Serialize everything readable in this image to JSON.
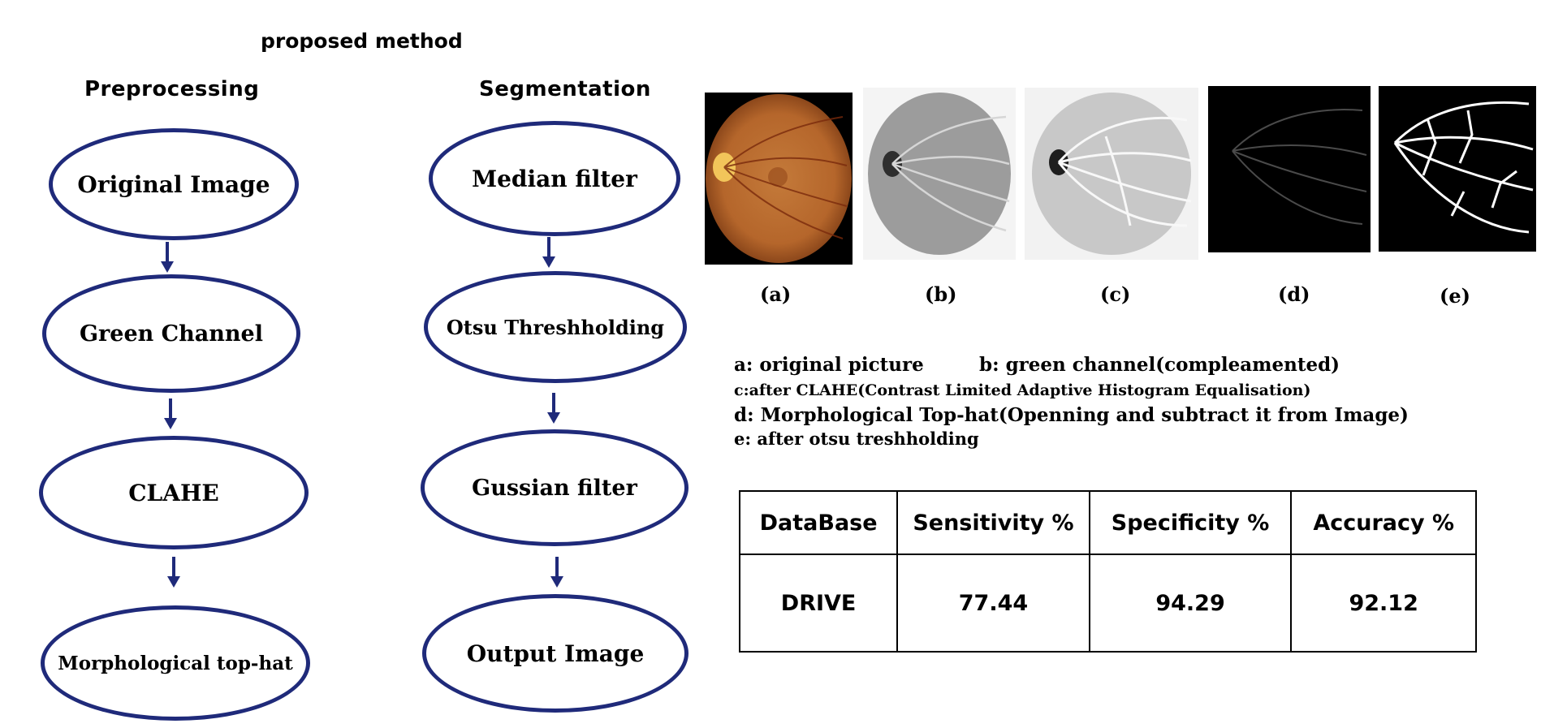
{
  "title": "proposed method",
  "columns": {
    "preprocessing": {
      "heading": "Preprocessing",
      "steps": [
        "Original Image",
        "Green Channel",
        "CLAHE",
        "Morphological top-hat"
      ]
    },
    "segmentation": {
      "heading": "Segmentation",
      "steps": [
        "Median filter",
        "Otsu Threshholding",
        "Gussian filter",
        "Output Image"
      ]
    }
  },
  "figure_captions": [
    "(a)",
    "(b)",
    "(c)",
    "(d)",
    "(e)"
  ],
  "legend": {
    "a": "a: original picture",
    "b": "b: green channel(compleamented)",
    "c": "c:after CLAHE(Contrast Limited Adaptive Histogram Equalisation)",
    "d": "d: Morphological Top-hat(Openning and subtract it from Image)",
    "e": "e: after otsu treshholding"
  },
  "results_table": {
    "headers": [
      "DataBase",
      "Sensitivity %",
      "Specificity %",
      "Accuracy %"
    ],
    "rows": [
      [
        "DRIVE",
        "77.44",
        "94.29",
        "92.12"
      ]
    ]
  },
  "colors": {
    "node_border": "#1f2a7a",
    "arrow": "#1f2a7a"
  }
}
